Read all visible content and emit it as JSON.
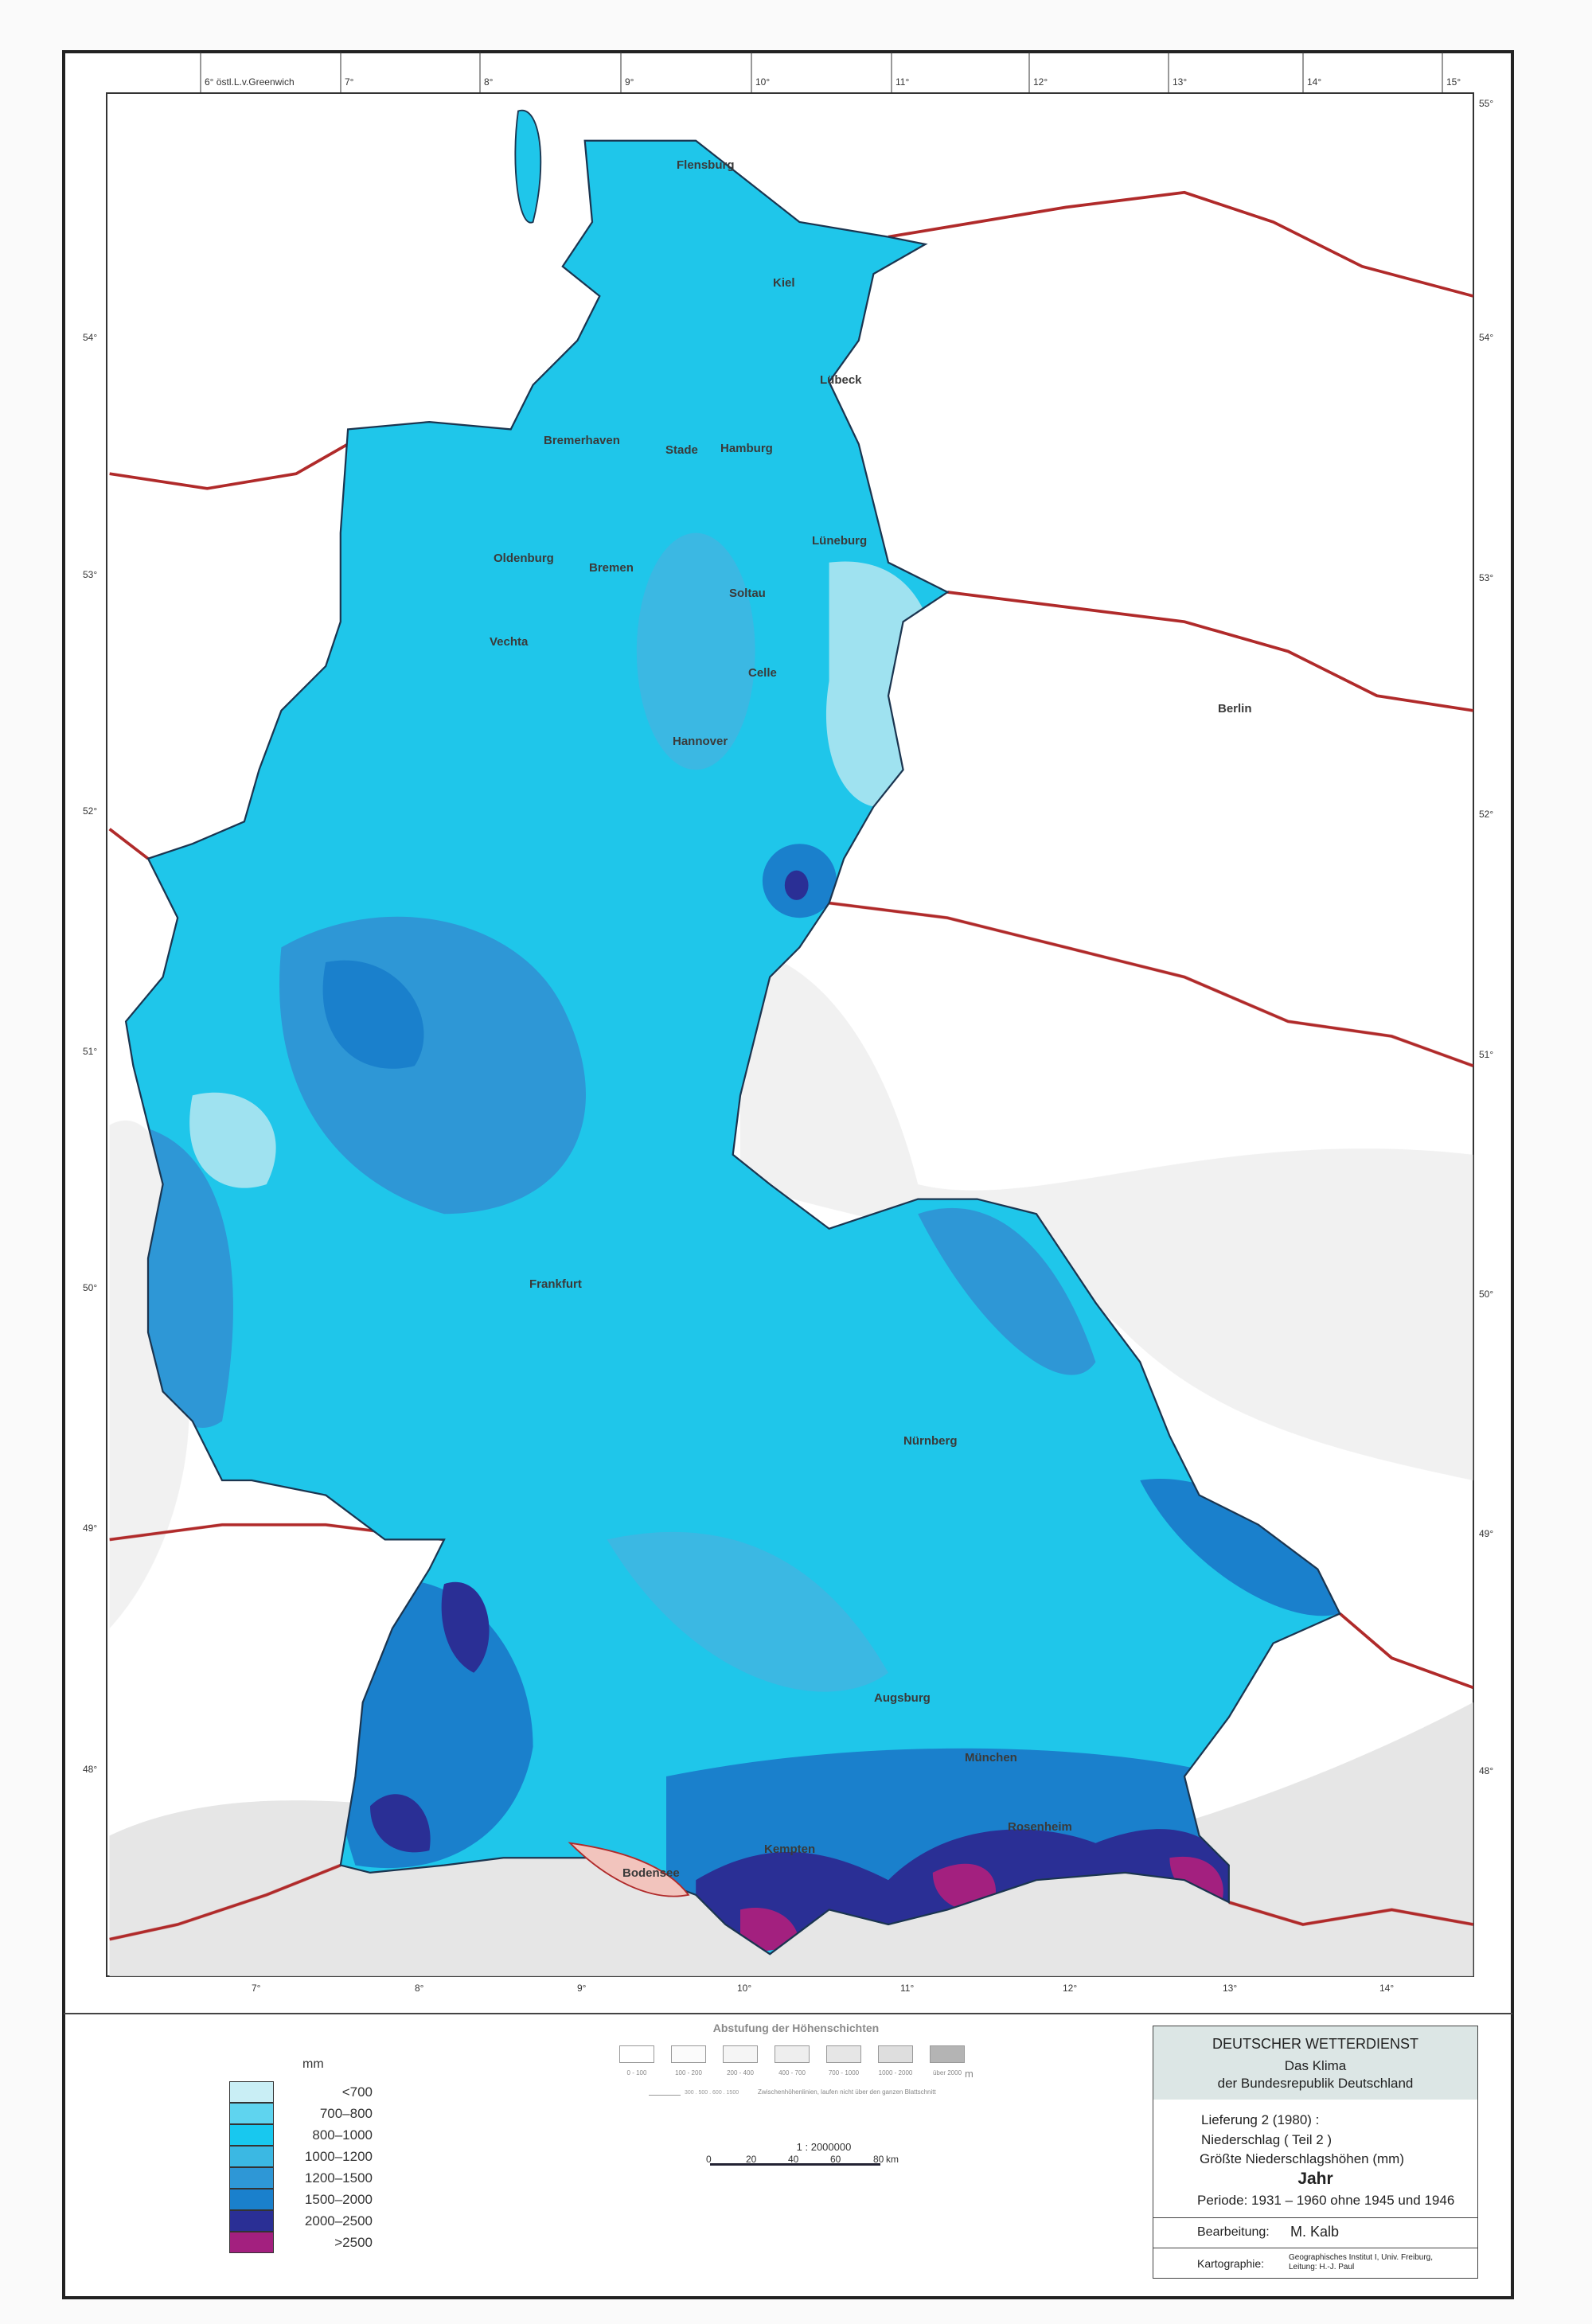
{
  "graticule": {
    "top": [
      "6° östl.L.v.Greenwich",
      "7°",
      "8°",
      "9°",
      "10°",
      "11°",
      "12°",
      "13°",
      "14°",
      "15°"
    ],
    "bottom": [
      "7°",
      "8°",
      "9°",
      "10°",
      "11°",
      "12°",
      "13°",
      "14°"
    ],
    "left": [
      "54°",
      "53°",
      "52°",
      "51°",
      "50°",
      "49°",
      "48°"
    ],
    "right": [
      "55°",
      "54°",
      "53°",
      "52°",
      "51°",
      "50°",
      "49°",
      "48°"
    ]
  },
  "map": {
    "cities": [
      "Flensburg",
      "Kiel",
      "Lübeck",
      "Hamburg",
      "Stade",
      "Bremerhaven",
      "Bremen",
      "Oldenburg",
      "Vechta",
      "Soltau",
      "Lüneburg",
      "Celle",
      "Hannover",
      "Berlin",
      "Frankfurt",
      "Nürnberg",
      "Augsburg",
      "München",
      "Rosenheim",
      "Kempten",
      "Bodensee"
    ],
    "colors": {
      "land": "#1fc6ea",
      "outside": "#ffffff",
      "border": "#b02a2a",
      "relief": "#dcdcdc",
      "lake": "#f2c4bd"
    }
  },
  "legend": {
    "unit": "mm",
    "classes": [
      {
        "label": "<700",
        "color": "#c9eef5"
      },
      {
        "label": "700–800",
        "color": "#5fd4ef"
      },
      {
        "label": "800–1000",
        "color": "#18c8ef"
      },
      {
        "label": "1000–1200",
        "color": "#3bb8e3"
      },
      {
        "label": "1200–1500",
        "color": "#2e97d6"
      },
      {
        "label": "1500–2000",
        "color": "#1a80cc"
      },
      {
        "label": "2000–2500",
        "color": "#2a2f95"
      },
      {
        "label": ">2500",
        "color": "#a3207f"
      }
    ]
  },
  "relief_legend": {
    "title": "Abstufung der Höhenschichten",
    "classes": [
      {
        "label": "0 - 100",
        "color": "#ffffff"
      },
      {
        "label": "100 - 200",
        "color": "#fbfbfb"
      },
      {
        "label": "200 - 400",
        "color": "#f5f5f5"
      },
      {
        "label": "400 - 700",
        "color": "#eeeeee"
      },
      {
        "label": "700 - 1000",
        "color": "#e6e6e6"
      },
      {
        "label": "1000 - 2000",
        "color": "#dedede"
      },
      {
        "label": "über 2000",
        "color": "#b4b4b4"
      }
    ],
    "unit": "m",
    "line_values": "300 . 500 . 600 . 1500",
    "line_note": "Zwischenhöhenlinien, laufen nicht über den ganzen Blattschnitt"
  },
  "scale": {
    "ratio": "1 : 2000000",
    "ticks": [
      "0",
      "20",
      "40",
      "60",
      "80"
    ],
    "unit": "km"
  },
  "title_block": {
    "org": "DEUTSCHER WETTERDIENST",
    "series1": "Das Klima",
    "series2": "der Bundesrepublik Deutschland",
    "delivery": "Lieferung 2 (1980) :",
    "topic": "Niederschlag ( Teil 2 )",
    "subject": "Größte Niederschlagshöhen  (mm)",
    "season": "Jahr",
    "period": "Periode: 1931 – 1960 ohne 1945 und 1946",
    "author_label": "Bearbeitung:",
    "author": "M. Kalb",
    "carto_label": "Kartographie:",
    "carto1": "Geographisches Institut I, Univ. Freiburg,",
    "carto2": "Leitung: H.-J. Paul"
  }
}
